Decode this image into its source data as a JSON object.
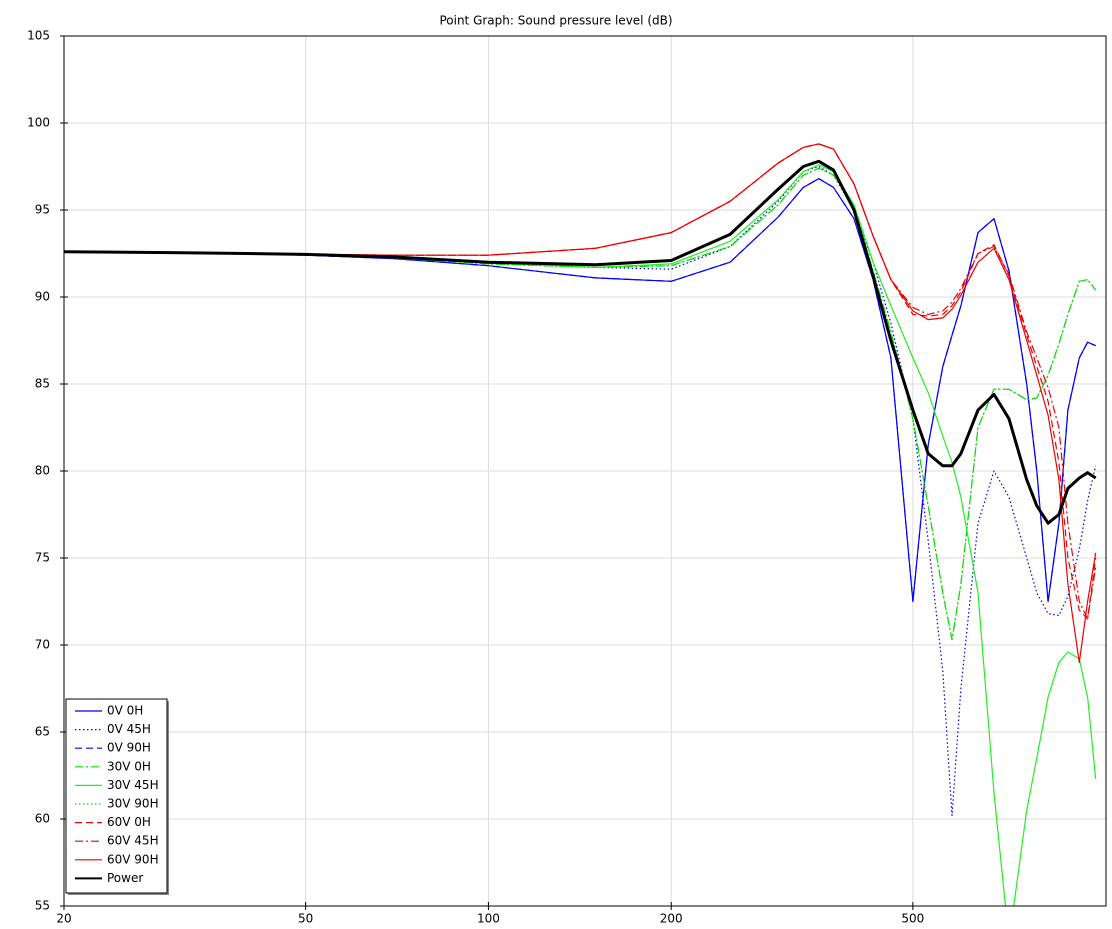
{
  "chart_data": {
    "type": "line",
    "title": "Point Graph: Sound pressure level (dB)",
    "x": [
      20,
      30,
      40,
      50,
      70,
      100,
      150,
      200,
      250,
      300,
      330,
      350,
      370,
      400,
      430,
      460,
      500,
      530,
      560,
      580,
      600,
      640,
      680,
      720,
      770,
      800,
      835,
      870,
      900,
      940,
      970,
      1000
    ],
    "xlim": [
      20,
      1040
    ],
    "xticks": [
      20,
      50,
      100,
      200,
      500
    ],
    "xscale": "log",
    "ylim": [
      55,
      105
    ],
    "yticks": [
      55,
      60,
      65,
      70,
      75,
      80,
      85,
      90,
      95,
      100,
      105
    ],
    "grid": true,
    "legend": "lower left",
    "series": [
      {
        "name": "0V 0H",
        "color": "#0000ff",
        "dash": "solid",
        "linewidth": 1.2,
        "values": [
          92.6,
          92.55,
          92.5,
          92.4,
          92.2,
          91.8,
          91.1,
          90.9,
          92.0,
          94.6,
          96.3,
          96.8,
          96.3,
          94.5,
          91.0,
          86.5,
          72.5,
          81.5,
          86.0,
          87.8,
          89.5,
          93.7,
          94.5,
          91.5,
          85.0,
          80.0,
          72.5,
          77.0,
          83.5,
          86.5,
          87.4,
          87.2
        ]
      },
      {
        "name": "0V 45H",
        "color": "#0000ff",
        "dash": "dot",
        "linewidth": 1.2,
        "values": [
          92.6,
          92.55,
          92.5,
          92.45,
          92.3,
          92.0,
          91.7,
          91.6,
          92.9,
          95.5,
          97.2,
          97.5,
          97.0,
          95.0,
          92.0,
          88.5,
          83.0,
          76.0,
          68.5,
          60.2,
          67.5,
          77.0,
          80.0,
          78.5,
          75.0,
          73.0,
          71.8,
          71.7,
          72.8,
          75.5,
          78.3,
          80.3
        ]
      },
      {
        "name": "0V 90H",
        "color": "#0000ff",
        "dash": "dash",
        "linewidth": 1.2,
        "values": [
          92.6,
          92.55,
          92.5,
          92.4,
          92.2,
          91.8,
          91.1,
          90.9,
          92.0,
          94.6,
          96.3,
          96.8,
          96.3,
          94.5,
          91.0,
          86.5,
          72.5,
          81.5,
          86.0,
          87.8,
          89.5,
          93.7,
          94.5,
          91.5,
          85.0,
          80.0,
          72.5,
          77.0,
          83.5,
          86.5,
          87.4,
          87.2
        ]
      },
      {
        "name": "30V 0H",
        "color": "#00dd00",
        "dash": "dashdot",
        "linewidth": 1.2,
        "values": [
          92.6,
          92.55,
          92.5,
          92.45,
          92.25,
          91.9,
          91.7,
          91.8,
          92.9,
          95.3,
          97.0,
          97.4,
          97.0,
          95.2,
          91.5,
          88.0,
          83.0,
          78.0,
          73.0,
          70.3,
          73.5,
          82.5,
          84.7,
          84.7,
          84.1,
          84.2,
          85.5,
          87.3,
          89.0,
          90.9,
          91.0,
          90.4
        ]
      },
      {
        "name": "30V 45H",
        "color": "#22ee22",
        "dash": "solid",
        "linewidth": 1.2,
        "values": [
          92.6,
          92.55,
          92.5,
          92.45,
          92.25,
          91.95,
          91.7,
          91.9,
          93.2,
          95.6,
          97.2,
          97.6,
          97.2,
          95.3,
          92.0,
          89.5,
          86.5,
          84.5,
          82.0,
          80.5,
          78.5,
          73.0,
          61.5,
          53.0,
          60.5,
          63.5,
          67.0,
          69.0,
          69.6,
          69.2,
          67.0,
          62.3
        ]
      },
      {
        "name": "30V 90H",
        "color": "#00dd00",
        "dash": "dot",
        "linewidth": 1.2,
        "values": [
          92.6,
          92.55,
          92.5,
          92.45,
          92.25,
          91.9,
          91.7,
          91.8,
          92.9,
          95.3,
          97.0,
          97.4,
          97.0,
          95.2,
          91.5,
          88.0,
          83.0,
          78.0,
          73.0,
          70.3,
          73.5,
          82.5,
          84.7,
          84.7,
          84.1,
          84.2,
          85.5,
          87.3,
          89.0,
          90.9,
          91.0,
          90.4
        ]
      },
      {
        "name": "60V 0H",
        "color": "#ee0000",
        "dash": "dash",
        "linewidth": 1.2,
        "values": [
          92.6,
          92.55,
          92.5,
          92.45,
          92.4,
          92.4,
          92.8,
          93.7,
          95.5,
          97.7,
          98.6,
          98.8,
          98.5,
          96.5,
          93.5,
          91.0,
          89.0,
          88.9,
          89.0,
          89.5,
          90.3,
          92.5,
          93.0,
          91.2,
          87.8,
          86.0,
          84.0,
          80.5,
          75.0,
          72.0,
          71.5,
          75.0
        ]
      },
      {
        "name": "60V 45H",
        "color": "#ee0000",
        "dash": "dashdot",
        "linewidth": 1.2,
        "values": [
          92.6,
          92.55,
          92.5,
          92.45,
          92.4,
          92.4,
          92.8,
          93.7,
          95.5,
          97.7,
          98.6,
          98.8,
          98.5,
          96.5,
          93.5,
          91.0,
          89.4,
          89.0,
          89.2,
          89.7,
          90.5,
          92.5,
          92.9,
          91.3,
          88.0,
          86.5,
          84.8,
          82.5,
          77.0,
          72.5,
          71.5,
          74.5
        ]
      },
      {
        "name": "60V 90H",
        "color": "#ee0000",
        "dash": "solid",
        "linewidth": 1.2,
        "values": [
          92.6,
          92.55,
          92.5,
          92.45,
          92.4,
          92.4,
          92.8,
          93.7,
          95.5,
          97.7,
          98.6,
          98.8,
          98.5,
          96.5,
          93.5,
          91.0,
          89.2,
          88.7,
          88.8,
          89.3,
          90.1,
          92.0,
          92.8,
          91.0,
          87.5,
          85.5,
          83.2,
          79.5,
          73.5,
          69.0,
          72.5,
          75.3
        ]
      },
      {
        "name": "Power",
        "color": "#000000",
        "dash": "solid",
        "linewidth": 3,
        "values": [
          92.6,
          92.55,
          92.5,
          92.45,
          92.3,
          92.0,
          91.85,
          92.1,
          93.6,
          96.2,
          97.5,
          97.8,
          97.3,
          95.0,
          91.2,
          87.5,
          83.5,
          81.0,
          80.3,
          80.3,
          81.0,
          83.5,
          84.4,
          83.0,
          79.5,
          78.0,
          77.0,
          77.5,
          79.0,
          79.6,
          79.9,
          79.6
        ]
      }
    ]
  }
}
